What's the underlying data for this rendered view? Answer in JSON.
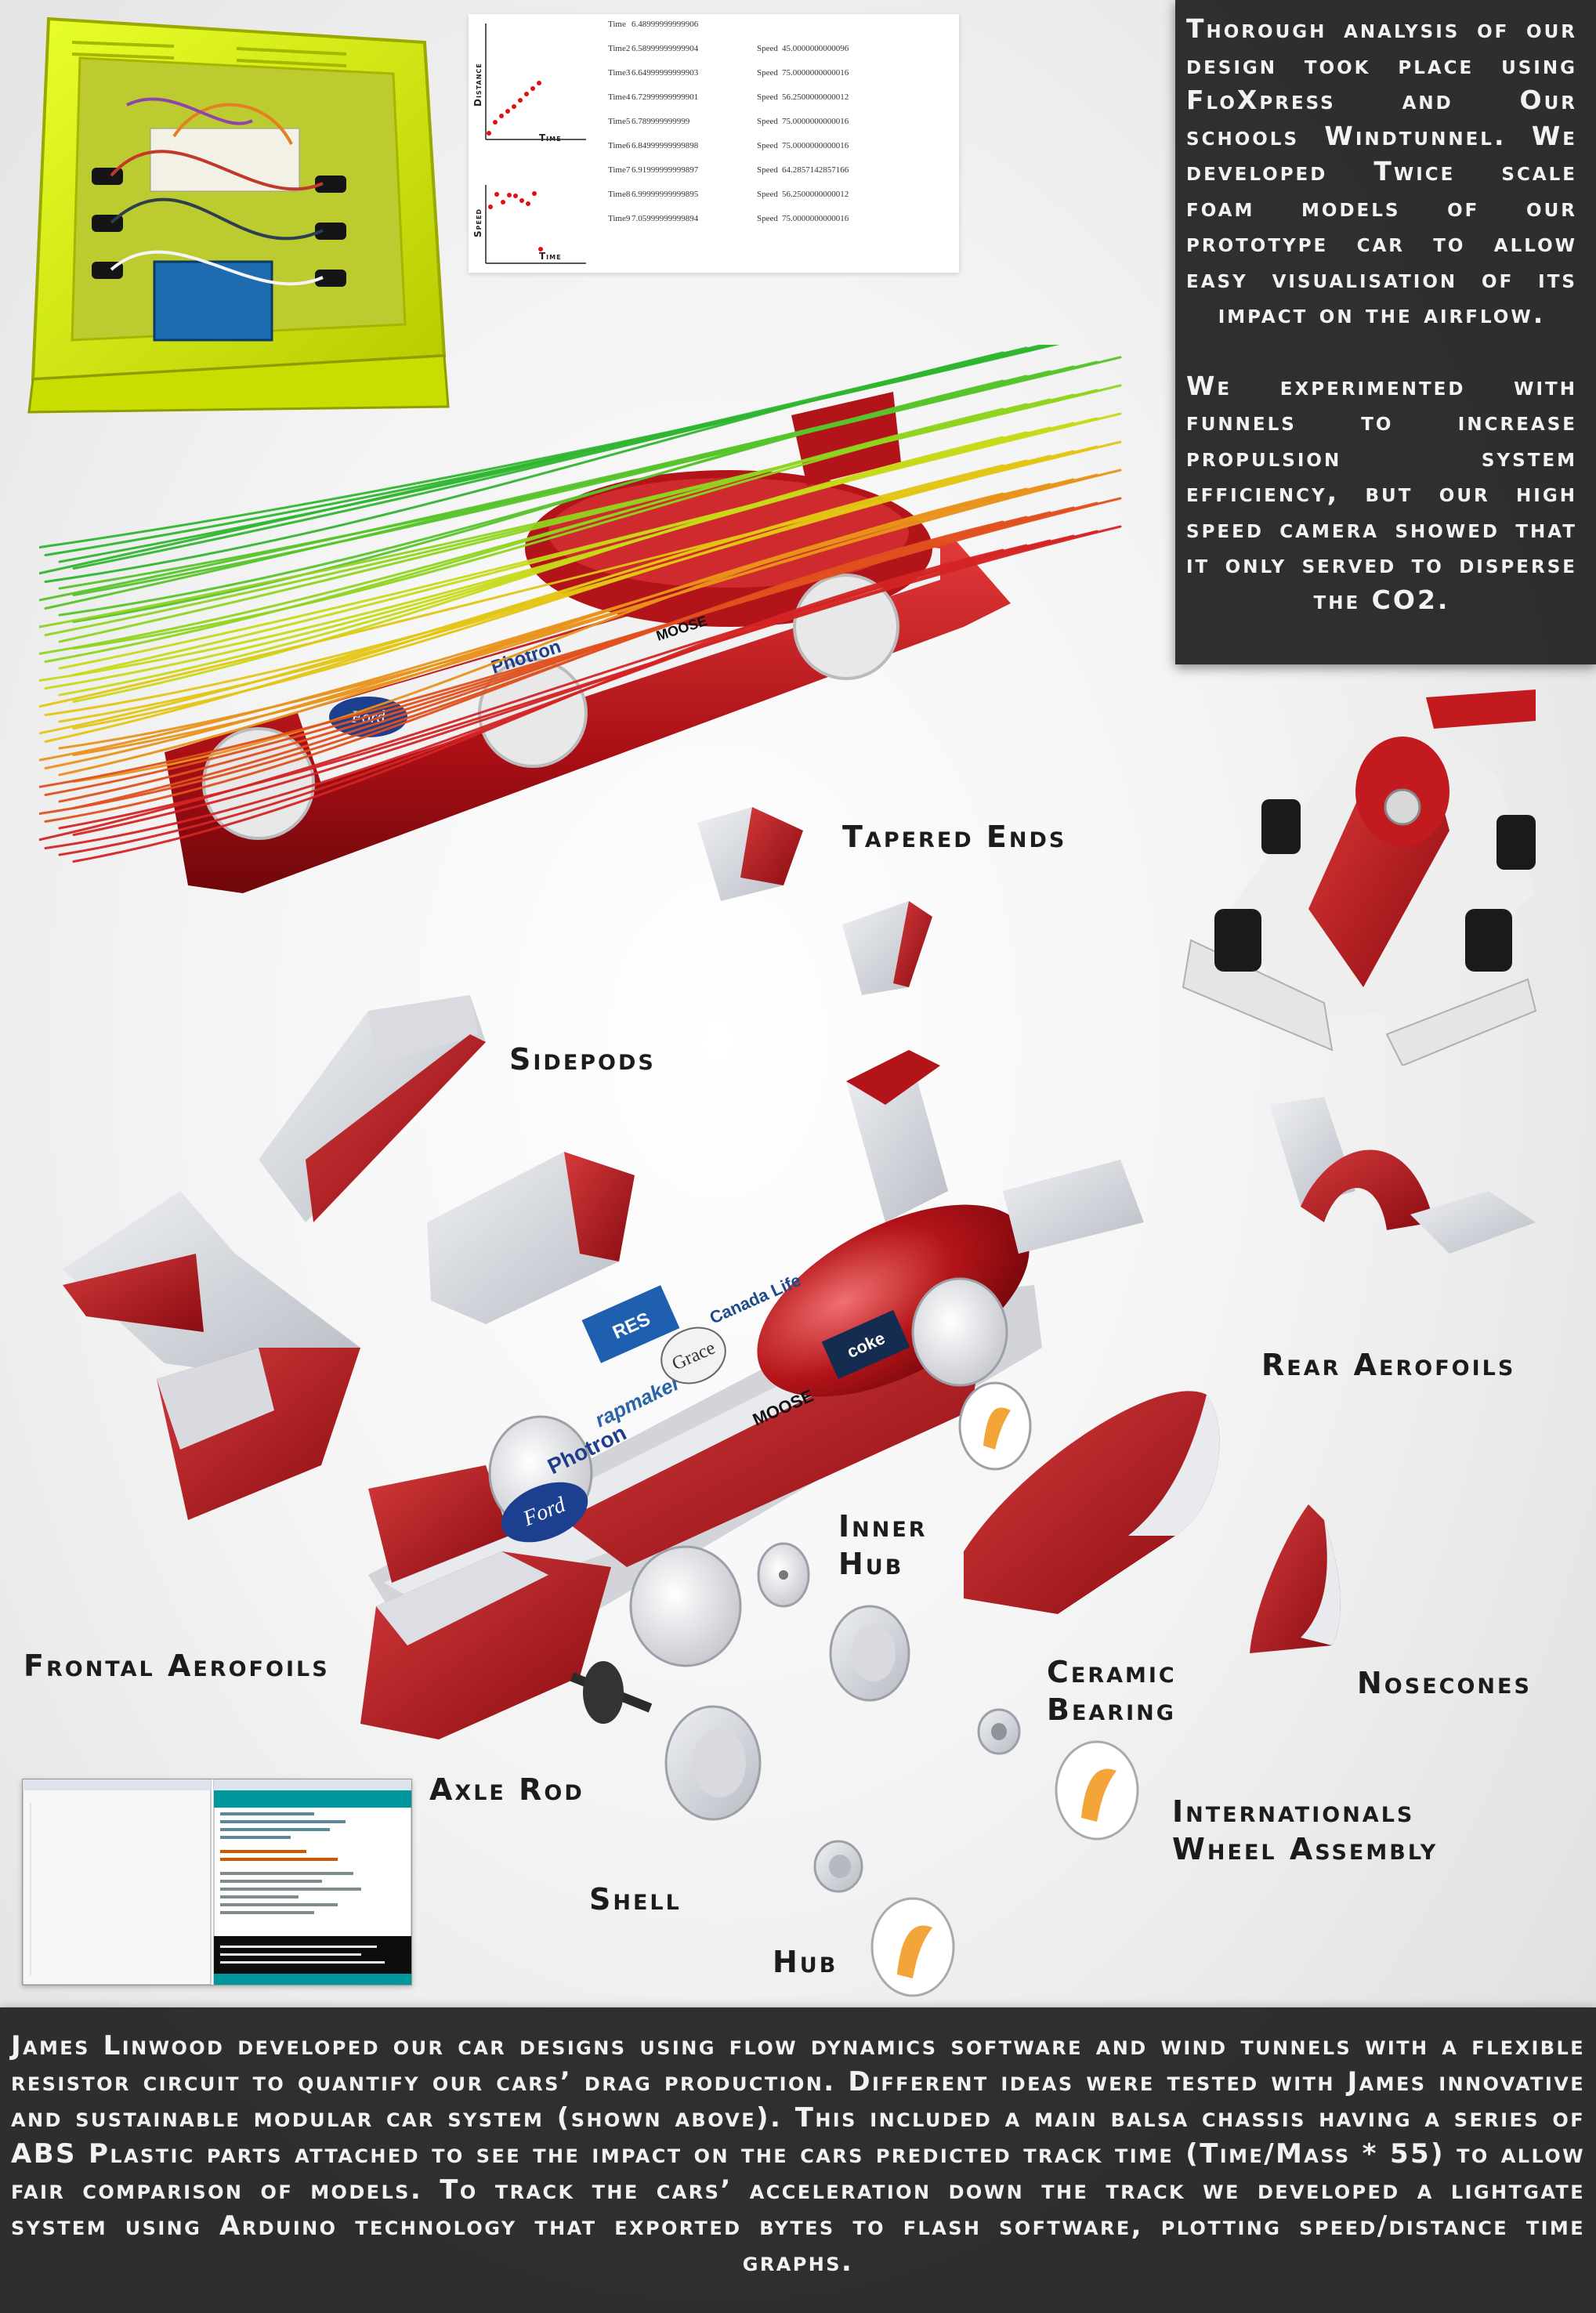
{
  "panels": {
    "analysis": {
      "paragraph_1": "Thorough analysis of our design took place using FloXpress and Our schools Windtunnel. We developed Twice scale foam models of our prototype car to allow easy visualisation of its impact on the airflow.",
      "paragraph_2": "We experimented with funnels to increase propulsion system efficiency, but our high speed camera showed that it only served to disperse the CO2."
    },
    "bottom": {
      "text": "James Linwood developed our car designs using flow dynamics software and wind tunnels with a flexible resistor circuit to quantify our cars’ drag production. Different ideas were tested with James innovative and sustainable modular car system (shown above). This included a main balsa chassis having a series of ABS Plastic parts attached to see the impact on the cars predicted track time (Time/Mass * 55) to allow fair comparison of models. To track the cars’ acceleration down the track we developed a lightgate system using Arduino technology that exported bytes to flash software, plotting speed/distance time graphs."
    }
  },
  "labels": {
    "tapered_ends": "Tapered Ends",
    "sidepods": "Sidepods",
    "rear_aerofoils": "Rear Aerofoils",
    "inner_hub": "Inner Hub",
    "frontal_aerofoils": "Frontal Aerofoils",
    "ceramic_bearing": "Ceramic Bearing",
    "nosecones": "Nosecones",
    "axle_rod": "Axle Rod",
    "internationals_wheel_assembly": "Internationals Wheel Assembly",
    "shell": "Shell",
    "hub": "Hub"
  },
  "graph": {
    "distance_axis": "Distance",
    "speed_axis": "Speed",
    "time_axis_1": "Time",
    "time_axis_2": "Time",
    "readings": [
      {
        "time_label": "Time",
        "time": "6.48999999999906",
        "speed_label": "",
        "speed": ""
      },
      {
        "time_label": "Time2",
        "time": "6.58999999999904",
        "speed_label": "Speed",
        "speed": "45.0000000000096"
      },
      {
        "time_label": "Time3",
        "time": "6.64999999999903",
        "speed_label": "Speed",
        "speed": "75.0000000000016"
      },
      {
        "time_label": "Time4",
        "time": "6.72999999999901",
        "speed_label": "Speed",
        "speed": "56.2500000000012"
      },
      {
        "time_label": "Time5",
        "time": "6.789999999999",
        "speed_label": "Speed",
        "speed": "75.0000000000016"
      },
      {
        "time_label": "Time6",
        "time": "6.84999999999898",
        "speed_label": "Speed",
        "speed": "75.0000000000016"
      },
      {
        "time_label": "Time7",
        "time": "6.91999999999897",
        "speed_label": "Speed",
        "speed": "64.2857142857166"
      },
      {
        "time_label": "Time8",
        "time": "6.99999999999895",
        "speed_label": "Speed",
        "speed": "56.2500000000012"
      },
      {
        "time_label": "Time9",
        "time": "7.05999999999894",
        "speed_label": "Speed",
        "speed": "75.0000000000016"
      }
    ]
  },
  "sponsors": {
    "ford": "Ford",
    "photron": "Photron",
    "rapmaker": "rapmaker",
    "grace": "Grace",
    "canada_life": "Canada Life",
    "moose": "MOOSE",
    "res": "RES",
    "coke": "coke"
  },
  "colors": {
    "car_red": "#b3161c",
    "part_grey": "#d7d9de",
    "acrylic_yellow": "#d8f000",
    "panel_dark": "#262626"
  }
}
